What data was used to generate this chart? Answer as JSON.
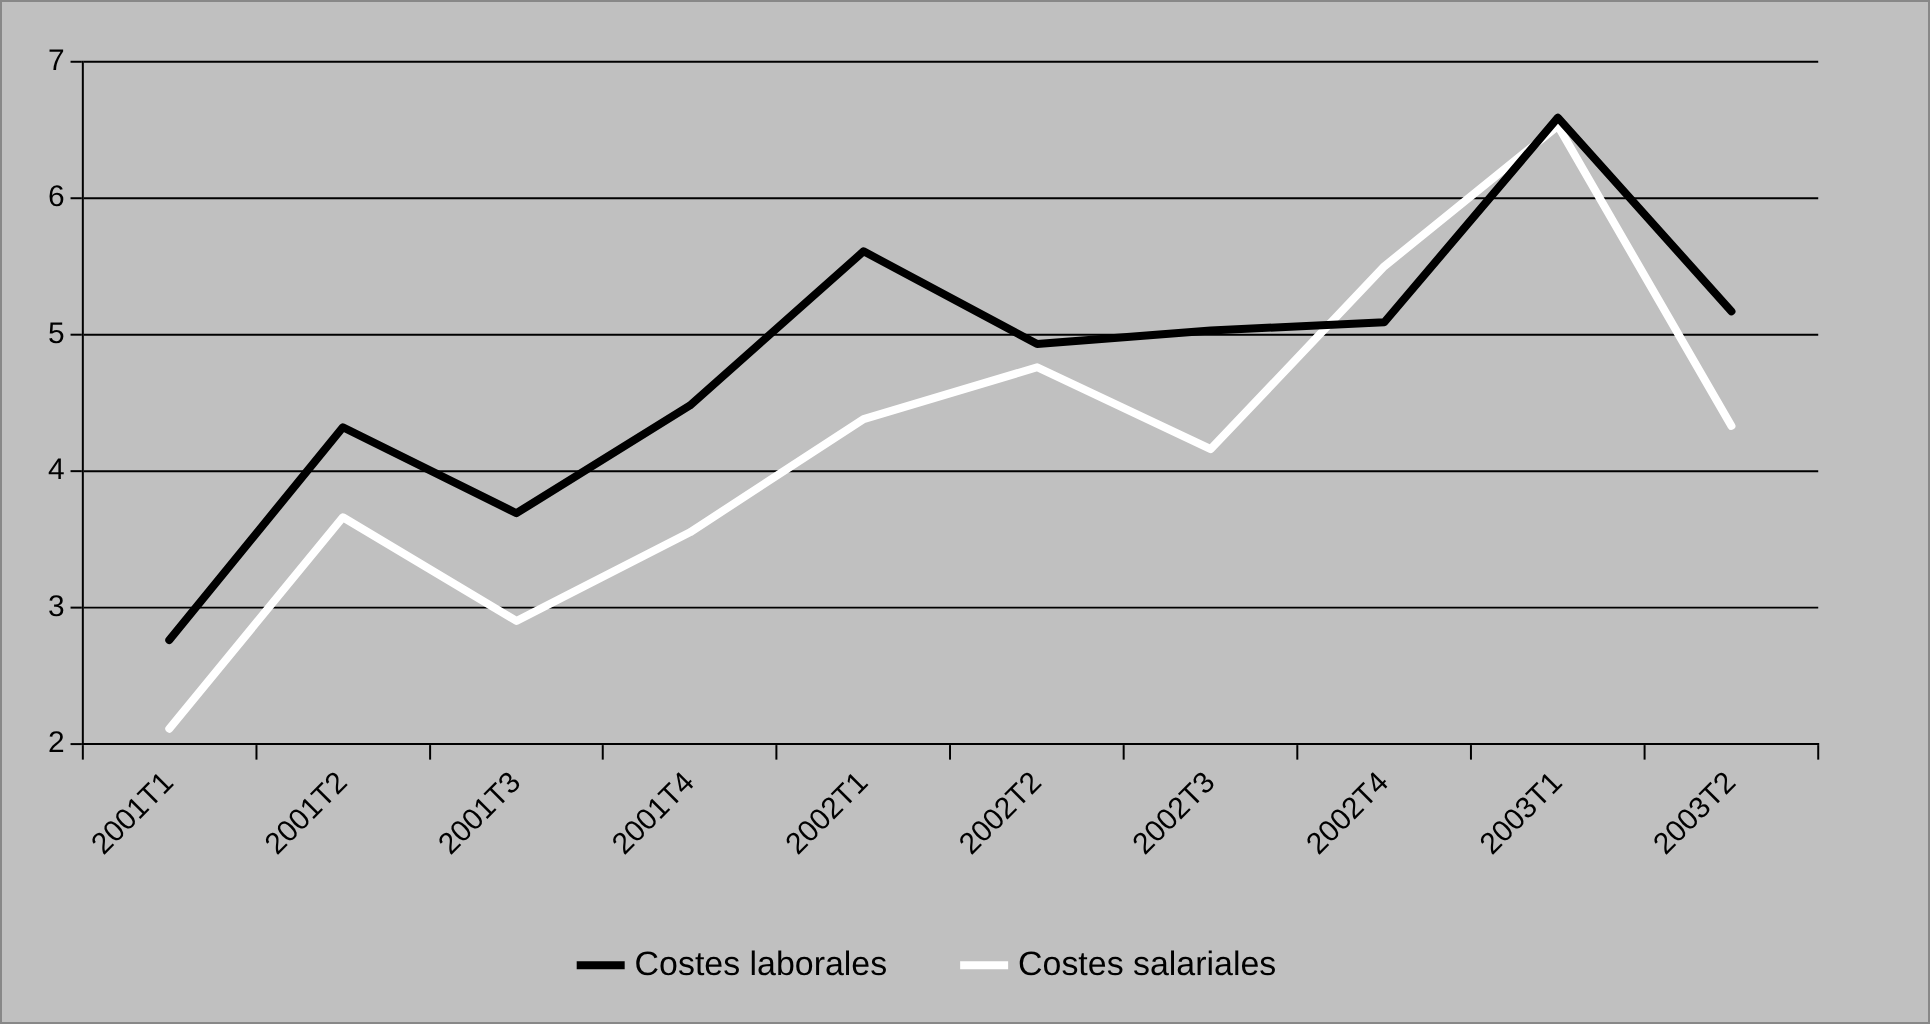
{
  "chart_data": {
    "type": "line",
    "categories": [
      "2001T1",
      "2001T2",
      "2001T3",
      "2001T4",
      "2002T1",
      "2002T2",
      "2002T3",
      "2002T4",
      "2003T1",
      "2003T2"
    ],
    "series": [
      {
        "name": "Costes laborales",
        "color": "#000000",
        "values": [
          2.76,
          4.32,
          3.69,
          4.48,
          5.61,
          4.93,
          5.03,
          5.09,
          6.59,
          5.17
        ]
      },
      {
        "name": "Costes salariales",
        "color": "#ffffff",
        "values": [
          2.11,
          3.66,
          2.9,
          3.55,
          4.38,
          4.76,
          4.16,
          5.5,
          6.53,
          4.33
        ]
      }
    ],
    "ylim": [
      2,
      7
    ],
    "yticks": [
      2,
      3,
      4,
      5,
      6,
      7
    ],
    "grid": "y",
    "legend": "bottom",
    "marker": "none",
    "line_style": "solid"
  }
}
